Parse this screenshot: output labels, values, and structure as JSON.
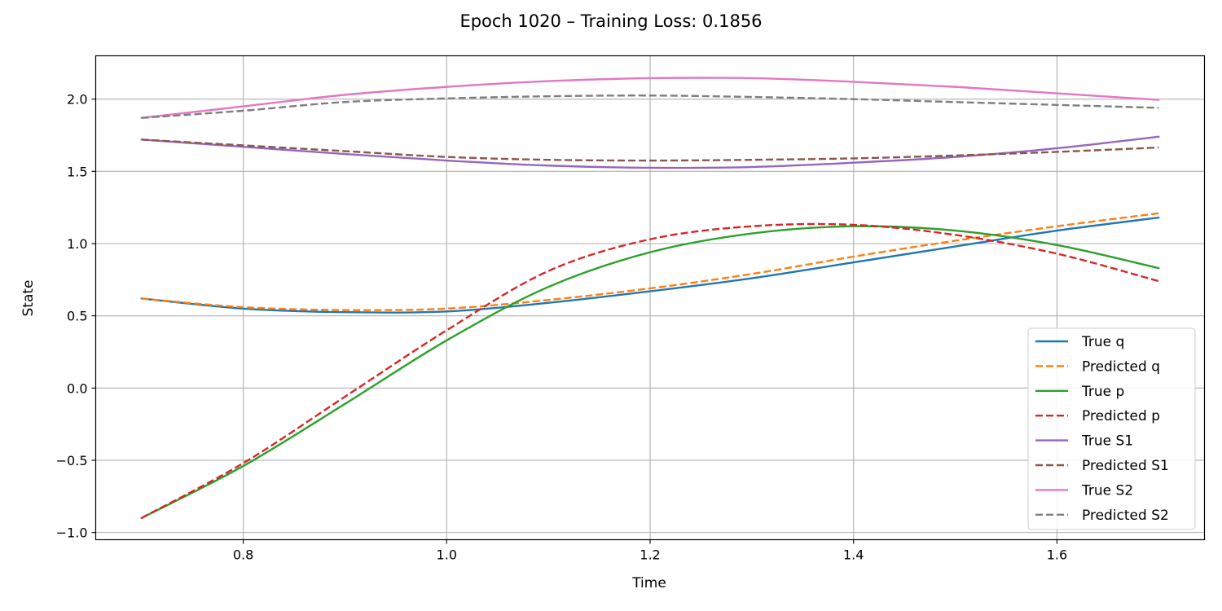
{
  "chart_data": {
    "type": "line",
    "title": "Epoch 1020 – Training Loss: 0.1856",
    "xlabel": "Time",
    "ylabel": "State",
    "xlim": [
      0.655,
      1.745
    ],
    "ylim": [
      -1.05,
      2.3
    ],
    "xticks": [
      0.8,
      1.0,
      1.2,
      1.4,
      1.6
    ],
    "xtick_labels": [
      "0.8",
      "1.0",
      "1.2",
      "1.4",
      "1.6"
    ],
    "yticks": [
      -1.0,
      -0.5,
      0.0,
      0.5,
      1.0,
      1.5,
      2.0
    ],
    "ytick_labels": [
      "−1.0",
      "−0.5",
      "0.0",
      "0.5",
      "1.0",
      "1.5",
      "2.0"
    ],
    "grid": true,
    "legend_position": "lower-right",
    "x": [
      0.7,
      0.8,
      0.9,
      1.0,
      1.1,
      1.2,
      1.3,
      1.4,
      1.5,
      1.6,
      1.7
    ],
    "series": [
      {
        "name": "True q",
        "color": "#1f77b4",
        "dashed": false,
        "values": [
          0.62,
          0.55,
          0.525,
          0.53,
          0.59,
          0.67,
          0.76,
          0.87,
          0.98,
          1.09,
          1.18
        ]
      },
      {
        "name": "Predicted q",
        "color": "#ff7f0e",
        "dashed": true,
        "values": [
          0.62,
          0.56,
          0.54,
          0.55,
          0.61,
          0.69,
          0.79,
          0.91,
          1.02,
          1.12,
          1.21
        ]
      },
      {
        "name": "True p",
        "color": "#2ca02c",
        "dashed": false,
        "values": [
          -0.9,
          -0.54,
          -0.11,
          0.33,
          0.7,
          0.94,
          1.07,
          1.12,
          1.09,
          0.99,
          0.83
        ]
      },
      {
        "name": "Predicted p",
        "color": "#d62728",
        "dashed": true,
        "values": [
          -0.9,
          -0.52,
          -0.06,
          0.4,
          0.81,
          1.03,
          1.12,
          1.13,
          1.06,
          0.93,
          0.74
        ]
      },
      {
        "name": "True S1",
        "color": "#9467bd",
        "dashed": false,
        "values": [
          1.72,
          1.67,
          1.62,
          1.575,
          1.54,
          1.525,
          1.53,
          1.56,
          1.6,
          1.66,
          1.74
        ]
      },
      {
        "name": "Predicted S1",
        "color": "#8c564b",
        "dashed": true,
        "values": [
          1.72,
          1.68,
          1.64,
          1.6,
          1.58,
          1.575,
          1.58,
          1.59,
          1.61,
          1.635,
          1.665
        ]
      },
      {
        "name": "True S2",
        "color": "#e377c2",
        "dashed": false,
        "values": [
          1.87,
          1.95,
          2.03,
          2.085,
          2.125,
          2.145,
          2.145,
          2.12,
          2.085,
          2.04,
          1.995
        ]
      },
      {
        "name": "Predicted S2",
        "color": "#7f7f7f",
        "dashed": true,
        "values": [
          1.87,
          1.92,
          1.98,
          2.005,
          2.02,
          2.025,
          2.015,
          2.0,
          1.98,
          1.96,
          1.94
        ]
      }
    ]
  }
}
